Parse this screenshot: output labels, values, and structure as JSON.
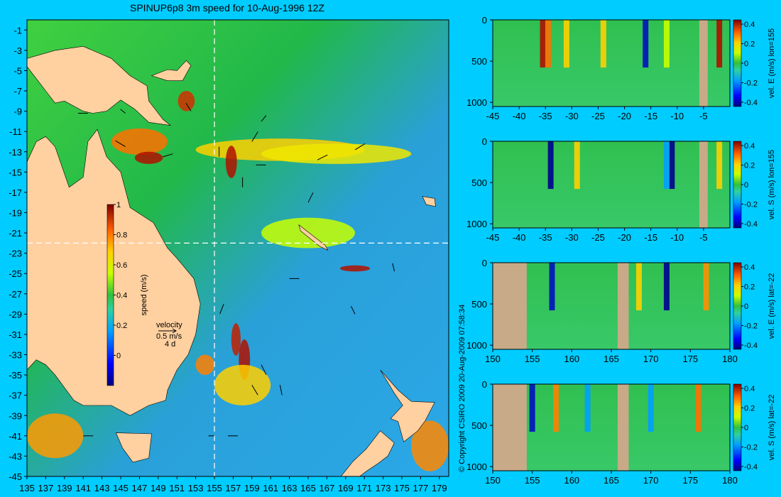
{
  "title": "SPINUP6p8 3m speed for 10-Aug-1996 12Z",
  "copyright": "© Copyright CSIRO 2009   20-Aug-2009 07:58:34",
  "colors": {
    "background": "#00ccff",
    "land": "#ffd0a0",
    "section_land": "#c8aa88",
    "crosshair": "#ffffff"
  },
  "chart_data": [
    {
      "type": "heatmap",
      "title": "SPINUP6p8 3m speed for 10-Aug-1996 12Z",
      "x_ticks": [
        135,
        137,
        139,
        141,
        143,
        145,
        147,
        149,
        151,
        153,
        155,
        157,
        159,
        161,
        163,
        165,
        167,
        169,
        171,
        173,
        175,
        177,
        179
      ],
      "y_ticks": [
        -1,
        -3,
        -5,
        -7,
        -9,
        -11,
        -13,
        -15,
        -17,
        -19,
        -21,
        -23,
        -25,
        -27,
        -29,
        -31,
        -33,
        -35,
        -37,
        -39,
        -41,
        -43,
        -45
      ],
      "xlim": [
        135,
        180
      ],
      "ylim": [
        -45,
        0
      ],
      "colorbar": {
        "label": "speed (m/s)",
        "ticks": [
          "1",
          "0.8",
          "0.6",
          "0.4",
          "0.2",
          "0"
        ],
        "range": [
          -0.2,
          1
        ]
      },
      "crosshair": {
        "lon": 155,
        "lat": -22
      },
      "velocity_key": {
        "title": "velocity",
        "speed": "0.5 m/s",
        "duration": "4 d"
      }
    },
    {
      "type": "heatmap",
      "xlabel": "",
      "ylabel": "vel. E (m/s)  lon=155",
      "x_ticks": [
        "-45",
        "-40",
        "-35",
        "-30",
        "-25",
        "-20",
        "-15",
        "-10",
        "-5"
      ],
      "y_ticks": [
        "0",
        "500",
        "1000"
      ],
      "xlim": [
        -45,
        0
      ],
      "ylim": [
        1050,
        0
      ],
      "cbar_ticks": [
        "0.4",
        "0.2",
        "0",
        "-0.2",
        "-0.4"
      ]
    },
    {
      "type": "heatmap",
      "xlabel": "",
      "ylabel": "vel. S (m/s)  lon=155",
      "x_ticks": [
        "-45",
        "-40",
        "-35",
        "-30",
        "-25",
        "-20",
        "-15",
        "-10",
        "-5"
      ],
      "y_ticks": [
        "0",
        "500",
        "1000"
      ],
      "xlim": [
        -45,
        0
      ],
      "ylim": [
        1050,
        0
      ],
      "cbar_ticks": [
        "0.4",
        "0.2",
        "0",
        "-0.2",
        "-0.4"
      ]
    },
    {
      "type": "heatmap",
      "xlabel": "",
      "ylabel": "vel. E (m/s)  lat=-22",
      "x_ticks": [
        "150",
        "155",
        "160",
        "165",
        "170",
        "175",
        "180"
      ],
      "y_ticks": [
        "0",
        "500",
        "1000"
      ],
      "xlim": [
        150,
        180
      ],
      "ylim": [
        1050,
        0
      ],
      "cbar_ticks": [
        "0.4",
        "0.2",
        "0",
        "-0.2",
        "-0.4"
      ]
    },
    {
      "type": "heatmap",
      "xlabel": "",
      "ylabel": "vel. S (m/s)  lat=-22",
      "x_ticks": [
        "150",
        "155",
        "160",
        "165",
        "170",
        "175",
        "180"
      ],
      "y_ticks": [
        "0",
        "500",
        "1000"
      ],
      "xlim": [
        150,
        180
      ],
      "ylim": [
        1050,
        0
      ],
      "cbar_ticks": [
        "0.4",
        "0.2",
        "0",
        "-0.2",
        "-0.4"
      ]
    }
  ]
}
